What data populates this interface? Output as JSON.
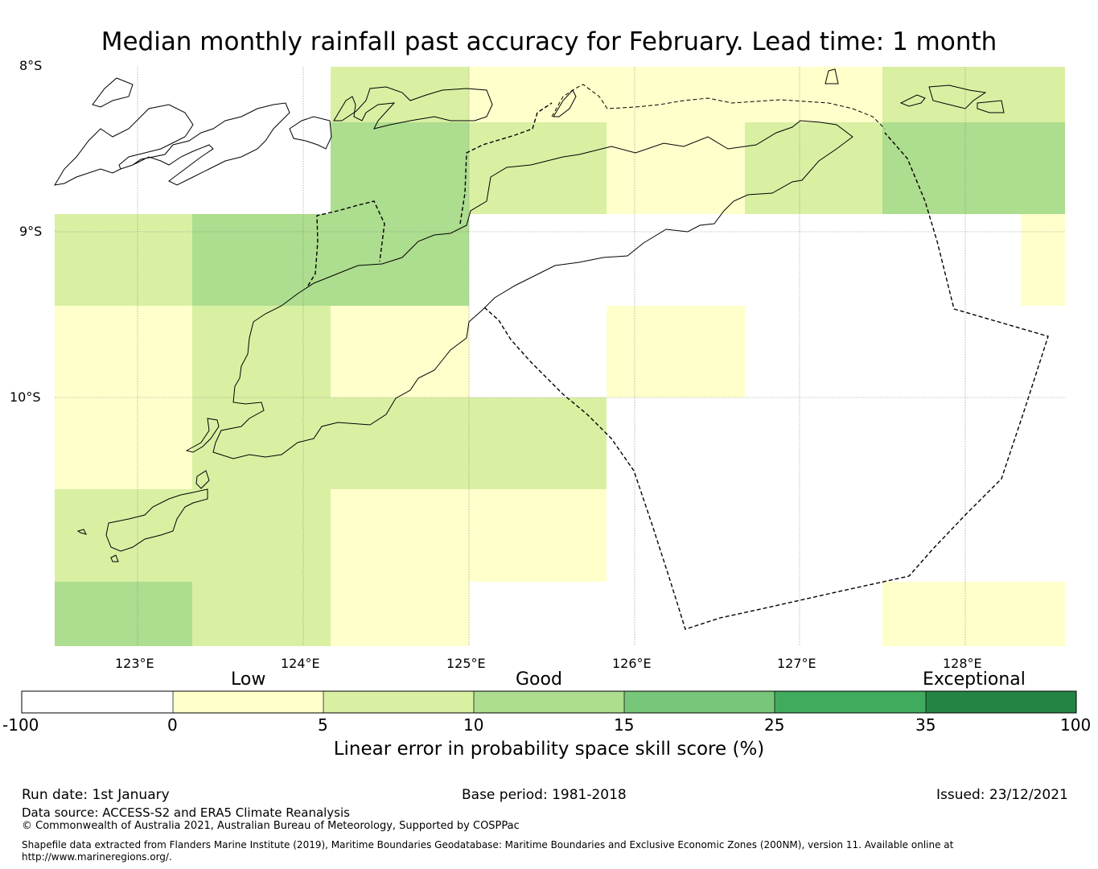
{
  "title": "Median monthly rainfall past accuracy for February. Lead time: 1 month",
  "map": {
    "lat_labels": [
      "8°S",
      "9°S",
      "10°S"
    ],
    "lon_labels": [
      "123°E",
      "124°E",
      "125°E",
      "126°E",
      "127°E",
      "128°E"
    ],
    "legend_note": "grid cells coloured by LEPS skill score category"
  },
  "colorbar": {
    "categories": [
      "Low",
      "Good",
      "Exceptional"
    ],
    "ticks": [
      "-100",
      "0",
      "5",
      "10",
      "15",
      "25",
      "35",
      "100"
    ],
    "colors": [
      "#ffffff",
      "#ffffcc",
      "#d9f0a3",
      "#addd8e",
      "#78c679",
      "#41ab5d",
      "#238443"
    ],
    "label": "Linear error in probability space skill score (%)"
  },
  "footer": {
    "run_date": "Run date: 1st January",
    "base_period": "Base period: 1981-2018",
    "issued": "Issued: 23/12/2021",
    "data_source": "Data source: ACCESS-S2 and ERA5 Climate Reanalysis",
    "copyright": "© Commonwealth of Australia 2021, Australian Bureau of Meteorology, Supported by COSPPac",
    "shapefile_line1": "Shapefile data extracted from Flanders Marine Institute (2019), Maritime Boundaries Geodatabase: Maritime Boundaries and Exclusive Economic Zones (200NM), version 11. Available online at",
    "shapefile_line2": "http://www.marineregions.org/."
  }
}
